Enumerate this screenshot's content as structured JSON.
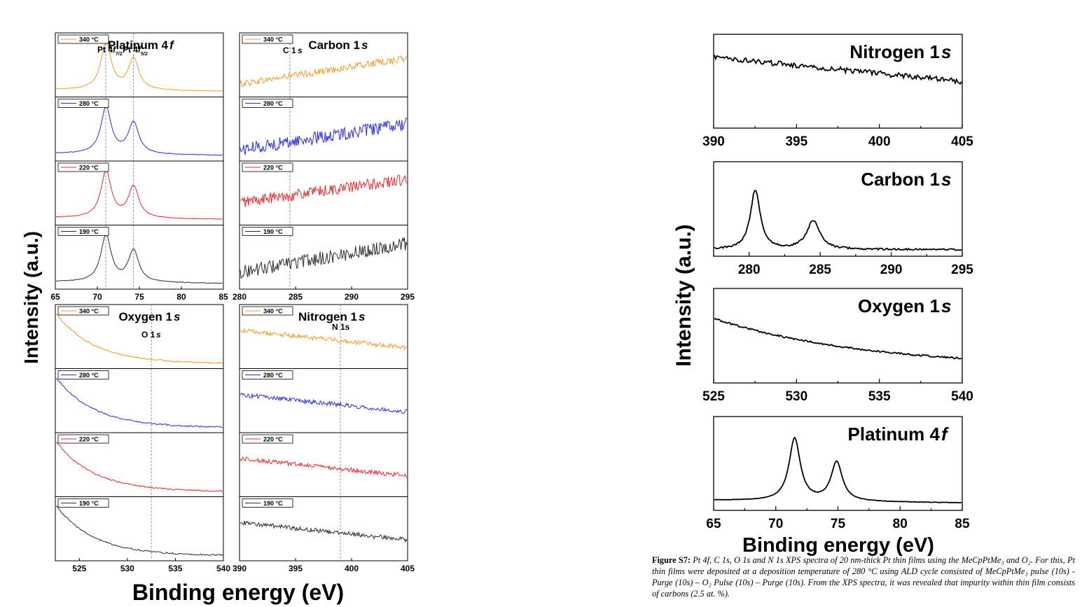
{
  "colors": {
    "t340": "#f39a2b",
    "t280": "#2a2ae0",
    "t220": "#e8282c",
    "t190": "#2b2b2b",
    "axis": "#000000",
    "marker": "#888888"
  },
  "left_figure": {
    "ylabel": "Intensity (a.u.)",
    "xlabel": "Binding energy (eV)",
    "temps": [
      "340 °C",
      "280 °C",
      "220 °C",
      "190 °C"
    ]
  },
  "right_figure": {
    "ylabel": "Intensity (a.u.)",
    "xlabel": "Binding energy (eV)"
  },
  "caption": {
    "label": "Figure S7:",
    "text": " Pt 4f, C 1s, O 1s and N 1s XPS spectra of 20 nm-thick Pt thin films using the MeCpPtMe₃ and O₂. For this, Pt thin films were deposited at a deposition temperature of 280 °C using ALD cycle consisted of MeCpPtMe₃ pulse (10s) - Purge (10s) – O₂ Pulse (10s) – Purge (10s). From the XPS spectra, it was revealed that impurity within thin film consists of carbons (2.5 at. %)."
  },
  "chart_data": [
    {
      "type": "line",
      "title": "Platinum 4f",
      "panel": "left-top-left",
      "xlabel": "Binding energy (eV)",
      "ylabel": "Intensity (a.u.)",
      "xlim": [
        65,
        85
      ],
      "xticks": [
        65,
        70,
        75,
        80,
        85
      ],
      "series": [
        "340 °C",
        "280 °C",
        "220 °C",
        "190 °C"
      ],
      "peaks": [
        71.0,
        74.3
      ],
      "annotations": [
        {
          "text": "Pt 4f7/2",
          "x": 71.0
        },
        {
          "text": "Pt 4f5/2",
          "x": 74.3
        }
      ]
    },
    {
      "type": "line",
      "title": "Carbon 1s",
      "panel": "left-top-right",
      "xlim": [
        280,
        295
      ],
      "xticks": [
        280,
        285,
        290,
        295
      ],
      "series": [
        "340 °C",
        "280 °C",
        "220 °C",
        "190 °C"
      ],
      "annotations": [
        {
          "text": "C 1s",
          "x": 284.5
        }
      ]
    },
    {
      "type": "line",
      "title": "Oxygen 1s",
      "panel": "left-bottom-left",
      "xlim": [
        522.5,
        540
      ],
      "xticks": [
        525,
        530,
        535,
        540
      ],
      "series": [
        "340 °C",
        "280 °C",
        "220 °C",
        "190 °C"
      ],
      "annotations": [
        {
          "text": "O 1s",
          "x": 532.5
        }
      ]
    },
    {
      "type": "line",
      "title": "Nitrogen 1s",
      "panel": "left-bottom-right",
      "xlim": [
        390,
        405
      ],
      "xticks": [
        390,
        395,
        400,
        405
      ],
      "series": [
        "340 °C",
        "280 °C",
        "220 °C",
        "190 °C"
      ],
      "annotations": [
        {
          "text": "N 1s",
          "x": 399
        }
      ]
    },
    {
      "type": "line",
      "title": "Nitrogen 1s",
      "panel": "right-1",
      "xlim": [
        390,
        405
      ],
      "xticks": [
        390,
        395,
        400,
        405
      ]
    },
    {
      "type": "line",
      "title": "Carbon 1s",
      "panel": "right-2",
      "xlim": [
        277.5,
        295
      ],
      "xticks": [
        280,
        285,
        290,
        295
      ],
      "peaks": [
        280.4,
        284.5
      ]
    },
    {
      "type": "line",
      "title": "Oxygen 1s",
      "panel": "right-3",
      "xlim": [
        525,
        540
      ],
      "xticks": [
        525,
        530,
        535,
        540
      ]
    },
    {
      "type": "line",
      "title": "Platinum 4f",
      "panel": "right-4",
      "xlim": [
        65,
        85
      ],
      "xticks": [
        65,
        70,
        75,
        80,
        85
      ],
      "peaks": [
        71.5,
        74.9
      ]
    }
  ]
}
